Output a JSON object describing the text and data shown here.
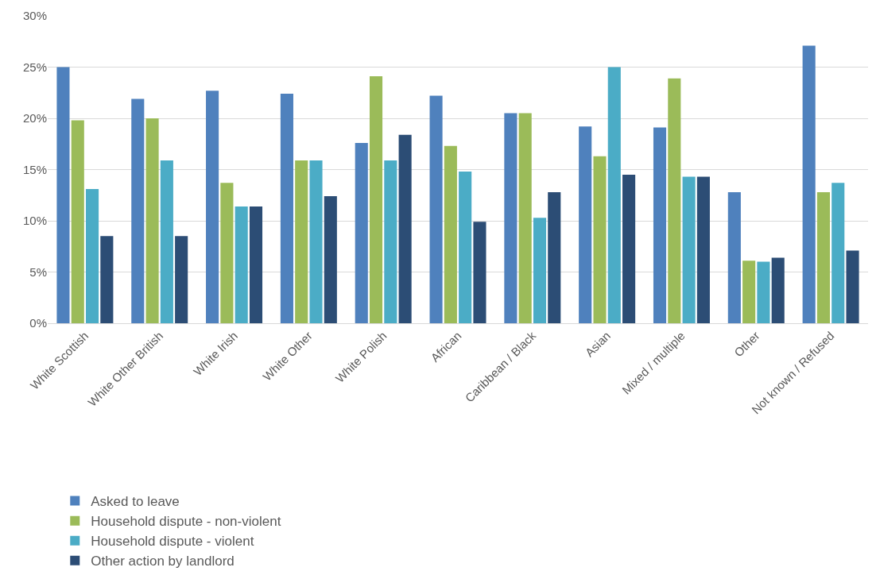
{
  "chart_data": {
    "type": "bar",
    "categories": [
      "White Scottish",
      "White Other British",
      "White Irish",
      "White Other",
      "White Polish",
      "African",
      "Caribbean / Black",
      "Asian",
      "Mixed / multiple",
      "Other",
      "Not known / Refused"
    ],
    "series": [
      {
        "name": "Asked to leave",
        "color": "#4f81bd",
        "values": [
          25.0,
          21.9,
          22.7,
          22.4,
          17.6,
          22.2,
          20.5,
          19.2,
          19.1,
          12.8,
          27.1
        ]
      },
      {
        "name": "Household dispute - non-violent",
        "color": "#9bbb59",
        "values": [
          19.8,
          20.0,
          13.7,
          15.9,
          24.1,
          17.3,
          20.5,
          16.3,
          23.9,
          6.1,
          12.8
        ]
      },
      {
        "name": "Household dispute - violent",
        "color": "#4bacc6",
        "values": [
          13.1,
          15.9,
          11.4,
          15.9,
          15.9,
          14.8,
          10.3,
          25.0,
          14.3,
          6.0,
          13.7
        ]
      },
      {
        "name": "Other action by landlord",
        "color": "#2c4d75",
        "values": [
          8.5,
          8.5,
          11.4,
          12.4,
          18.4,
          9.9,
          12.8,
          14.5,
          14.3,
          6.4,
          7.1
        ]
      }
    ],
    "ylim": [
      0,
      30
    ],
    "yticks": [
      {
        "value": 0,
        "label": "0%"
      },
      {
        "value": 5,
        "label": "5%"
      },
      {
        "value": 10,
        "label": "10%"
      },
      {
        "value": 15,
        "label": "15%"
      },
      {
        "value": 20,
        "label": "20%"
      },
      {
        "value": 25,
        "label": "25%"
      },
      {
        "value": 30,
        "label": "30%"
      }
    ],
    "grid": "y",
    "legend": "bottom"
  }
}
